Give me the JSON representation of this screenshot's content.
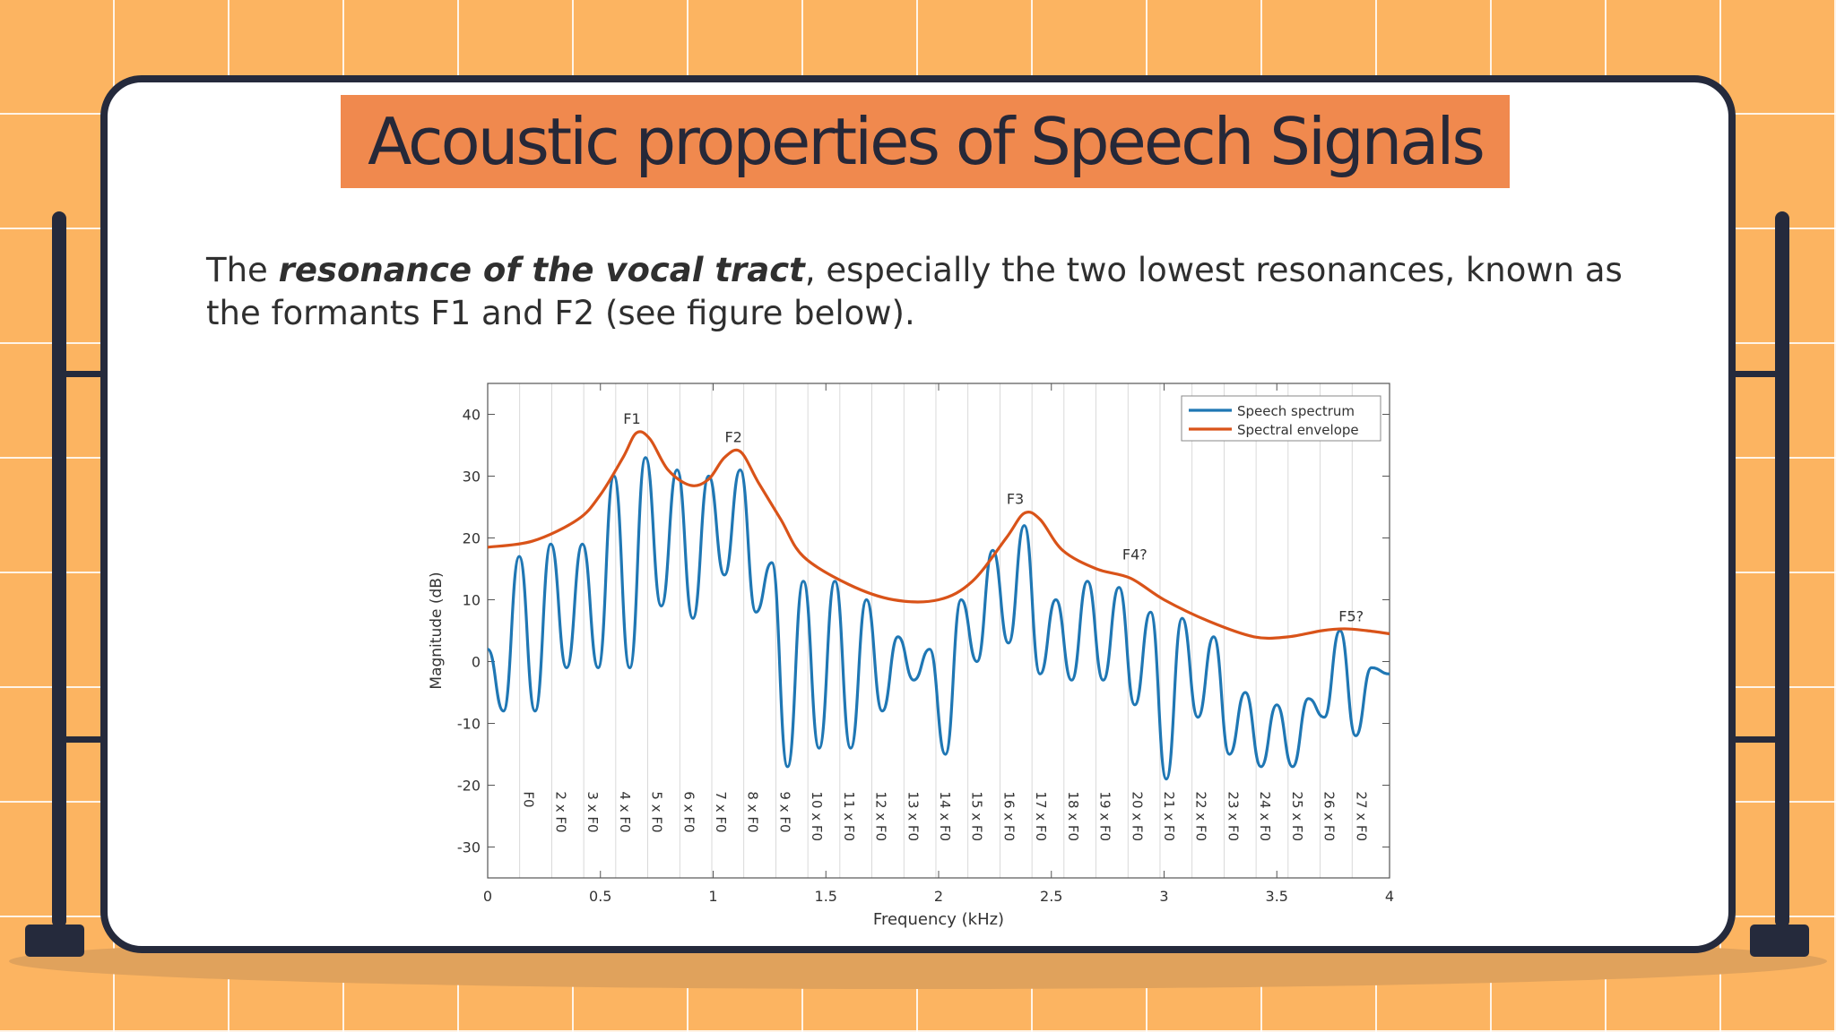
{
  "slide": {
    "title": "Acoustic properties of Speech Signals",
    "text_before": "The ",
    "text_emphasis": "resonance of the vocal tract",
    "text_after": ", especially the two lowest resonances, known as the formants F1 and F2 (see figure below)."
  },
  "colors": {
    "background": "#fcb461",
    "title_highlight": "#f0894e",
    "board_border": "#252a3c",
    "spectrum": "#1f77b4",
    "envelope": "#d95319"
  },
  "chart_data": {
    "type": "line",
    "xlabel": "Frequency (kHz)",
    "ylabel": "Magnitude (dB)",
    "xlim": [
      0,
      4
    ],
    "ylim": [
      -35,
      45
    ],
    "x_ticks": [
      0,
      0.5,
      1,
      1.5,
      2,
      2.5,
      3,
      3.5,
      4
    ],
    "y_ticks": [
      -30,
      -20,
      -10,
      0,
      10,
      20,
      30,
      40
    ],
    "grid": false,
    "legend_position": "top-right",
    "series": [
      {
        "name": "Speech spectrum",
        "color": "#1f77b4",
        "peaks": [
          [
            0.0,
            2
          ],
          [
            0.14,
            17
          ],
          [
            0.28,
            19
          ],
          [
            0.42,
            19
          ],
          [
            0.56,
            30
          ],
          [
            0.7,
            33
          ],
          [
            0.84,
            31
          ],
          [
            0.98,
            30
          ],
          [
            1.12,
            31
          ],
          [
            1.26,
            16
          ],
          [
            1.4,
            13
          ],
          [
            1.54,
            13
          ],
          [
            1.68,
            10
          ],
          [
            1.82,
            4
          ],
          [
            1.96,
            2
          ],
          [
            2.1,
            10
          ],
          [
            2.24,
            18
          ],
          [
            2.38,
            22
          ],
          [
            2.52,
            10
          ],
          [
            2.66,
            13
          ],
          [
            2.8,
            12
          ],
          [
            2.94,
            8
          ],
          [
            3.08,
            7
          ],
          [
            3.22,
            4
          ],
          [
            3.36,
            -5
          ],
          [
            3.5,
            -7
          ],
          [
            3.64,
            -6
          ],
          [
            3.78,
            5
          ],
          [
            3.92,
            -1
          ]
        ],
        "troughs": [
          [
            0.07,
            -8
          ],
          [
            0.21,
            -8
          ],
          [
            0.35,
            -1
          ],
          [
            0.49,
            -1
          ],
          [
            0.63,
            -1
          ],
          [
            0.77,
            9
          ],
          [
            0.91,
            7
          ],
          [
            1.05,
            14
          ],
          [
            1.19,
            8
          ],
          [
            1.33,
            -17
          ],
          [
            1.47,
            -14
          ],
          [
            1.61,
            -14
          ],
          [
            1.75,
            -8
          ],
          [
            1.89,
            -3
          ],
          [
            2.03,
            -15
          ],
          [
            2.17,
            0
          ],
          [
            2.31,
            3
          ],
          [
            2.45,
            -2
          ],
          [
            2.59,
            -3
          ],
          [
            2.73,
            -3
          ],
          [
            2.87,
            -7
          ],
          [
            3.01,
            -19
          ],
          [
            3.15,
            -9
          ],
          [
            3.29,
            -15
          ],
          [
            3.43,
            -17
          ],
          [
            3.57,
            -17
          ],
          [
            3.71,
            -9
          ],
          [
            3.85,
            -12
          ],
          [
            4.0,
            -2
          ]
        ]
      },
      {
        "name": "Spectral envelope",
        "color": "#d95319",
        "x": [
          0,
          0.2,
          0.4,
          0.5,
          0.6,
          0.66,
          0.72,
          0.8,
          0.9,
          0.98,
          1.05,
          1.12,
          1.2,
          1.3,
          1.4,
          1.6,
          1.8,
          2.0,
          2.15,
          2.3,
          2.38,
          2.45,
          2.55,
          2.7,
          2.85,
          3.0,
          3.2,
          3.4,
          3.55,
          3.7,
          3.8,
          3.9,
          4.0
        ],
        "y": [
          18.5,
          19.5,
          23,
          27,
          33,
          37,
          36,
          31,
          28.5,
          29.5,
          33,
          34,
          29,
          23,
          17,
          12.5,
          10,
          10,
          13,
          20,
          24,
          23,
          18,
          15,
          13.5,
          10,
          6.5,
          4,
          4,
          5,
          5.3,
          5,
          4.5
        ]
      }
    ],
    "annotations": [
      {
        "text": "F1",
        "x": 0.64,
        "y": 38.5
      },
      {
        "text": "F2",
        "x": 1.09,
        "y": 35.5
      },
      {
        "text": "F3",
        "x": 2.34,
        "y": 25.5
      },
      {
        "text": "F4?",
        "x": 2.87,
        "y": 16.5
      },
      {
        "text": "F5?",
        "x": 3.83,
        "y": 6.5
      }
    ],
    "harmonic_labels": [
      "F0",
      "2 x F0",
      "3 x F0",
      "4 x F0",
      "5 x F0",
      "6 x F0",
      "7 x F0",
      "8 x F0",
      "9 x F0",
      "10 x F0",
      "11 x F0",
      "12 x F0",
      "13 x F0",
      "14 x F0",
      "15 x F0",
      "16 x F0",
      "17 x F0",
      "18 x F0",
      "19 x F0",
      "20 x F0",
      "21 x F0",
      "22 x F0",
      "23 x F0",
      "24 x F0",
      "25 x F0",
      "26 x F0",
      "27 x F0"
    ],
    "fundamental_khz": 0.142
  }
}
